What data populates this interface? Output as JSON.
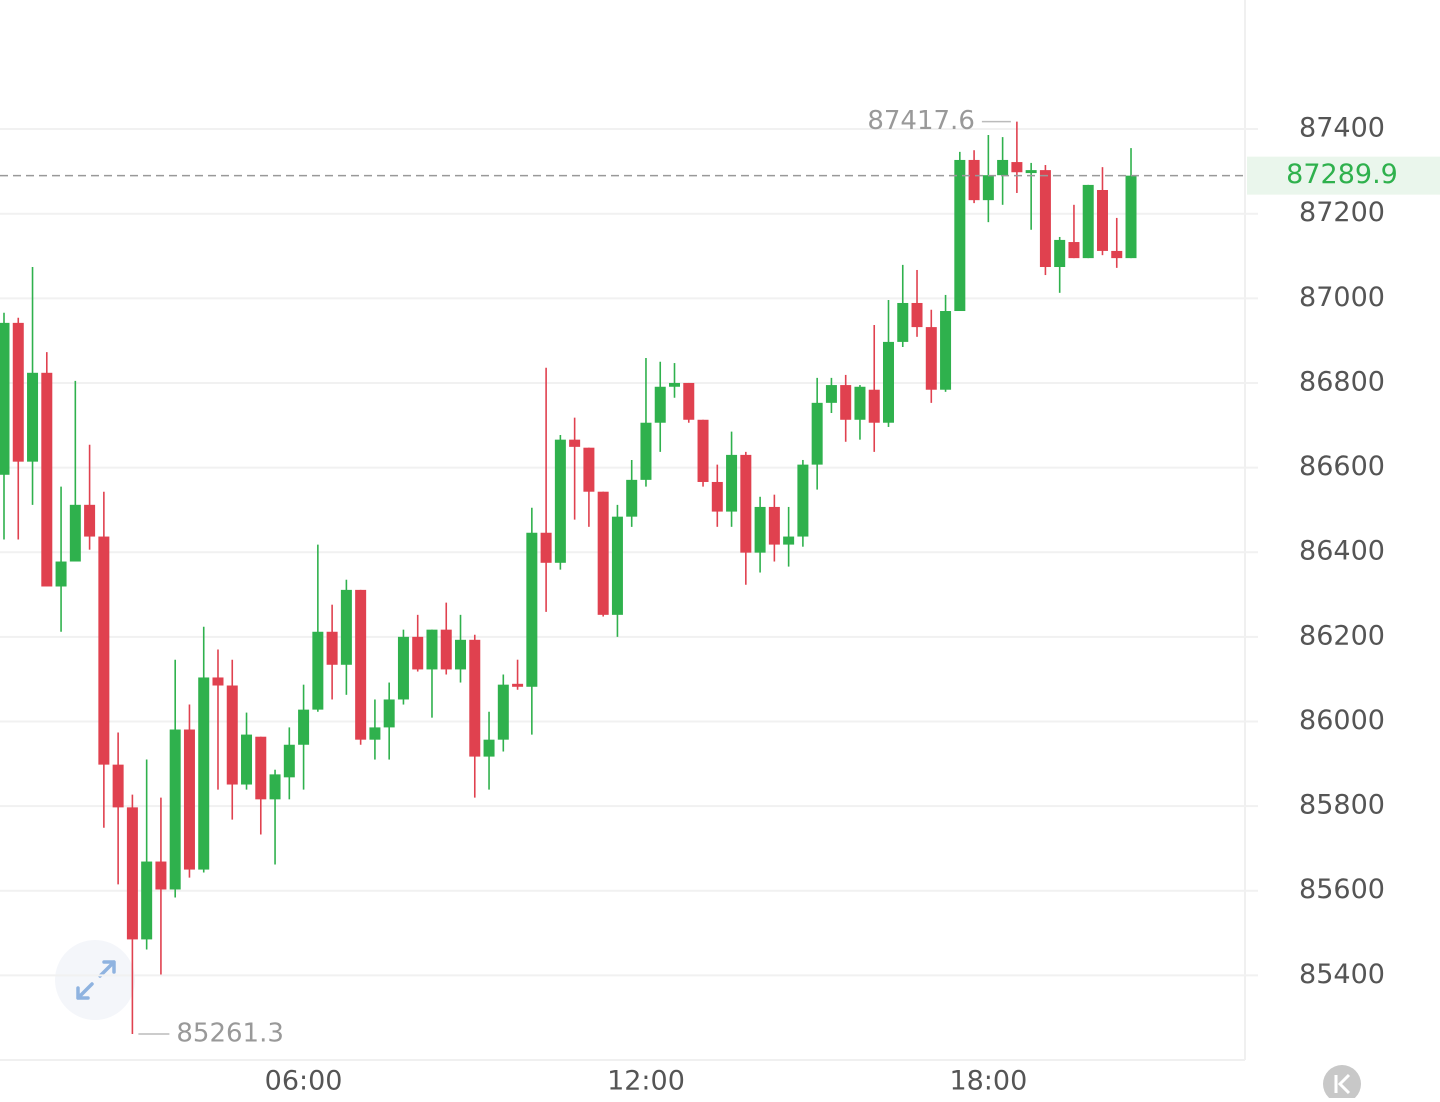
{
  "chart_data": {
    "type": "candlestick",
    "categories": [
      null,
      null,
      null,
      null,
      null,
      null,
      null,
      null,
      null,
      null,
      null,
      null,
      null,
      null,
      null,
      null,
      null,
      null,
      null,
      null,
      null,
      "06:00",
      null,
      null,
      null,
      null,
      null,
      null,
      null,
      null,
      null,
      null,
      null,
      null,
      null,
      null,
      null,
      null,
      null,
      null,
      null,
      null,
      null,
      null,
      null,
      "12:00",
      null,
      null,
      null,
      null,
      null,
      null,
      null,
      null,
      null,
      null,
      null,
      null,
      null,
      null,
      null,
      null,
      null,
      null,
      null,
      null,
      null,
      null,
      null,
      "18:00",
      null,
      null,
      null,
      null,
      null,
      null,
      null,
      null,
      null,
      null
    ],
    "open": [
      86583,
      86942,
      86614,
      86824,
      86319,
      86378,
      86512,
      86437,
      85898,
      85797,
      85485,
      85669,
      85603,
      85981,
      85650,
      86104,
      86085,
      85851,
      85964,
      85816,
      85868,
      85945,
      86028,
      86212,
      86134,
      86311,
      85957,
      85986,
      86052,
      86200,
      86123,
      86217,
      86123,
      86193,
      85917,
      85957,
      86089,
      86082,
      86446,
      86375,
      86666,
      86647,
      86543,
      86252,
      86484,
      86571,
      86706,
      86791,
      86800,
      86713,
      86566,
      86496,
      86630,
      86399,
      86507,
      86418,
      86437,
      86607,
      86753,
      86795,
      86713,
      86784,
      86706,
      86897,
      86989,
      86932,
      86784,
      86970,
      87327,
      87232,
      87291,
      87322,
      87296,
      87303,
      87074,
      87133,
      87095,
      87256,
      87112,
      87095
    ],
    "high": [
      86966,
      86954,
      87074,
      86873,
      86555,
      86805,
      86654,
      86543,
      85974,
      85827,
      85910,
      85820,
      86146,
      86040,
      86224,
      86170,
      86146,
      86021,
      85964,
      85886,
      85986,
      86087,
      86418,
      86276,
      86335,
      86311,
      86052,
      86092,
      86217,
      86252,
      86217,
      86281,
      86252,
      86205,
      86023,
      86111,
      86146,
      86505,
      86836,
      86677,
      86718,
      86647,
      86543,
      86512,
      86618,
      86859,
      86850,
      86847,
      86800,
      86713,
      86607,
      86685,
      86637,
      86531,
      86536,
      86507,
      86618,
      86812,
      86812,
      86819,
      86795,
      86937,
      86996,
      87079,
      87067,
      86973,
      87008,
      87346,
      87350,
      87386,
      87381,
      87417.6,
      87320,
      87315,
      87145,
      87221,
      87268,
      87310,
      87190,
      87355
    ],
    "low": [
      86430,
      86430,
      86512,
      86319,
      86212,
      86378,
      86406,
      85749,
      85615,
      85261.3,
      85461,
      85402,
      85584,
      85631,
      85643,
      85839,
      85768,
      85839,
      85733,
      85662,
      85816,
      85839,
      86023,
      86052,
      86063,
      85945,
      85910,
      85910,
      86040,
      86118,
      86009,
      86111,
      86092,
      85820,
      85839,
      85929,
      86075,
      85969,
      86259,
      86359,
      86477,
      86460,
      86248,
      86200,
      86460,
      86555,
      86637,
      86765,
      86706,
      86555,
      86460,
      86460,
      86323,
      86352,
      86378,
      86366,
      86413,
      86548,
      86729,
      86661,
      86666,
      86637,
      86696,
      86885,
      86909,
      86753,
      86779,
      86970,
      87225,
      87180,
      87221,
      87249,
      87162,
      87055,
      87013,
      87095,
      87095,
      87102,
      87072,
      87095
    ],
    "close": [
      86942,
      86614,
      86824,
      86319,
      86378,
      86512,
      86437,
      85898,
      85797,
      85485,
      85669,
      85603,
      85981,
      85650,
      86104,
      86085,
      85851,
      85969,
      85816,
      85875,
      85945,
      86028,
      86212,
      86134,
      86311,
      85957,
      85986,
      86052,
      86200,
      86123,
      86217,
      86123,
      86193,
      85917,
      85957,
      86087,
      86082,
      86446,
      86375,
      86666,
      86649,
      86543,
      86252,
      86484,
      86571,
      86706,
      86791,
      86800,
      86713,
      86566,
      86496,
      86630,
      86399,
      86507,
      86418,
      86437,
      86607,
      86753,
      86795,
      86713,
      86791,
      86706,
      86897,
      86989,
      86932,
      86784,
      86970,
      87327,
      87232,
      87291,
      87327,
      87298,
      87303,
      87074,
      87138,
      87095,
      87268,
      87112,
      87095,
      87289.9
    ],
    "up_color": "#2fb14d",
    "down_color": "#e0414f",
    "ylim": [
      85200,
      87705
    ],
    "yticks": [
      85400,
      85600,
      85800,
      86000,
      86200,
      86400,
      86600,
      86800,
      87000,
      87200,
      87400
    ],
    "grid": true
  }
}
